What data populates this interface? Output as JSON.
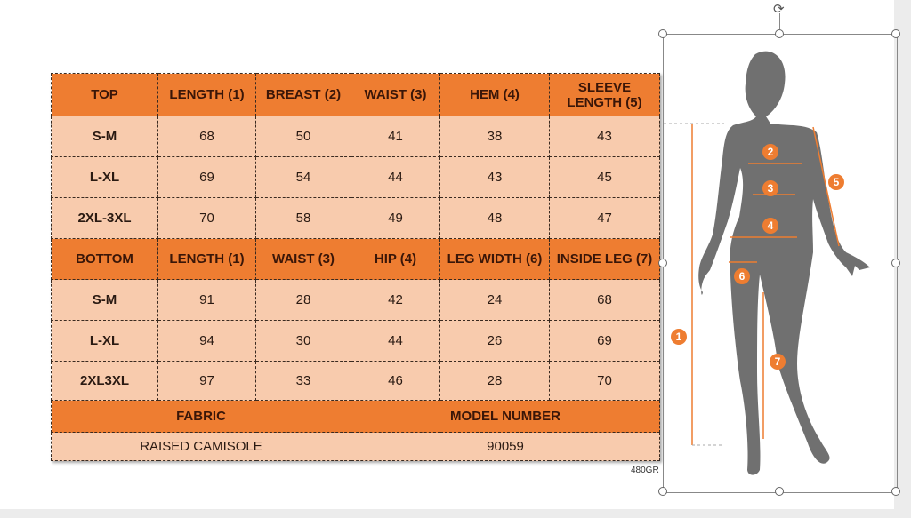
{
  "top_table": {
    "headers": [
      "TOP",
      "LENGTH (1)",
      "BREAST (2)",
      "WAIST (3)",
      "HEM (4)",
      "SLEEVE LENGTH (5)"
    ],
    "rows": [
      [
        "S-M",
        "68",
        "50",
        "41",
        "38",
        "43"
      ],
      [
        "L-XL",
        "69",
        "54",
        "44",
        "43",
        "45"
      ],
      [
        "2XL-3XL",
        "70",
        "58",
        "49",
        "48",
        "47"
      ]
    ]
  },
  "bottom_table": {
    "headers": [
      "BOTTOM",
      "LENGTH (1)",
      "WAIST (3)",
      "HIP (4)",
      "LEG WIDTH (6)",
      "INSIDE LEG (7)"
    ],
    "rows": [
      [
        "S-M",
        "91",
        "28",
        "42",
        "24",
        "68"
      ],
      [
        "L-XL",
        "94",
        "30",
        "44",
        "26",
        "69"
      ],
      [
        "2XL3XL",
        "97",
        "33",
        "46",
        "28",
        "70"
      ]
    ]
  },
  "footer": {
    "fabric_label": "FABRIC",
    "model_label": "MODEL NUMBER",
    "fabric_value": "RAISED CAMISOLE",
    "model_value": "90059"
  },
  "weight_note": "480GR",
  "figure": {
    "markers": [
      "1",
      "2",
      "3",
      "4",
      "5",
      "6",
      "7"
    ],
    "accent_color": "#ee7d31",
    "silhouette_color": "#707070"
  }
}
